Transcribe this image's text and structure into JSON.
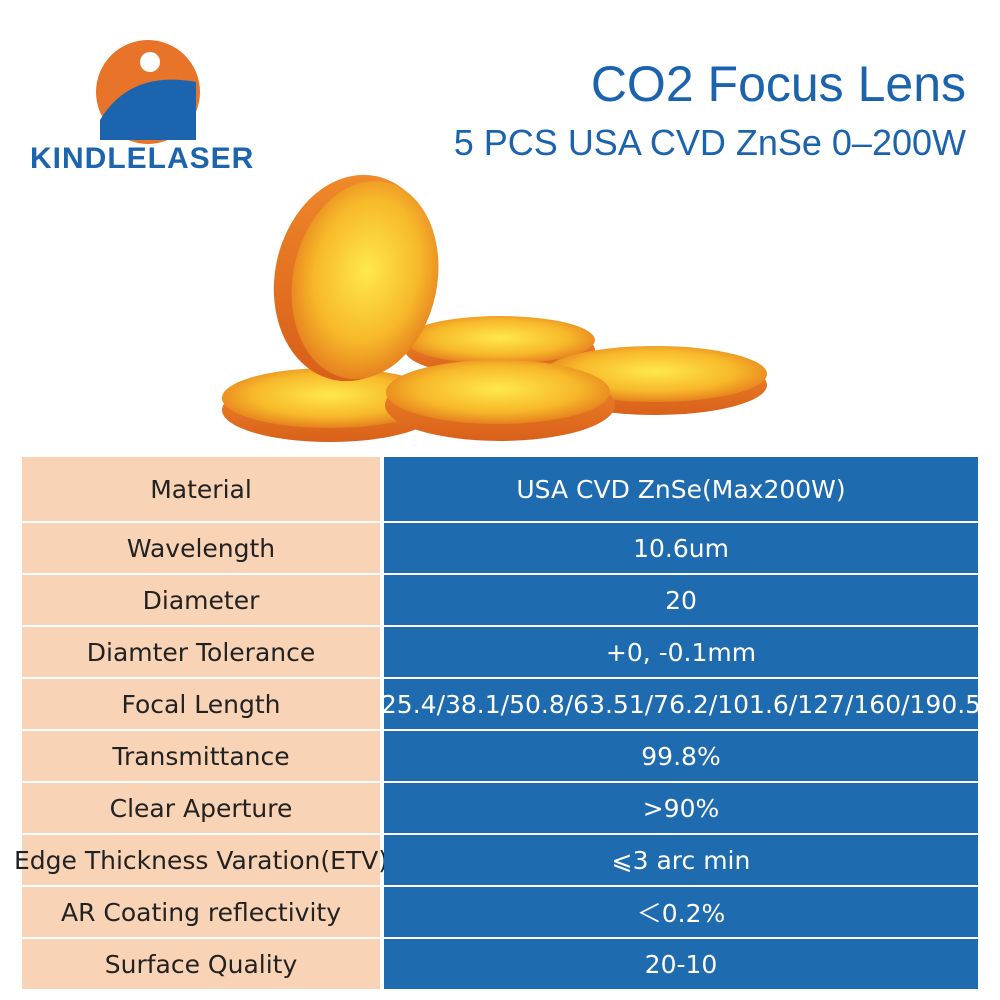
{
  "header": {
    "logo": "KINDLELASER",
    "title": "CO2 Focus Lens",
    "subtitle": "5 PCS USA CVD ZnSe 0–200W"
  },
  "table": {
    "rows": [
      [
        "Material",
        "USA CVD ZnSe(Max200W)"
      ],
      [
        "Wavelength",
        "10.6um"
      ],
      [
        "Diameter",
        "20"
      ],
      [
        "Diamter Tolerance",
        "+0, -0.1mm"
      ],
      [
        "Focal Length",
        "25.4/38.1/50.8/63.51/76.2/101.6/127/160/190.5"
      ],
      [
        "Transmittance",
        "99.8%"
      ],
      [
        "Clear Aperture",
        ">90%"
      ],
      [
        "Edge Thickness Varation(ETV)",
        "⩽3 arc min"
      ],
      [
        "AR Coating reflectivity",
        "＜0.2%"
      ],
      [
        "Surface Quality",
        "20-10"
      ]
    ]
  }
}
